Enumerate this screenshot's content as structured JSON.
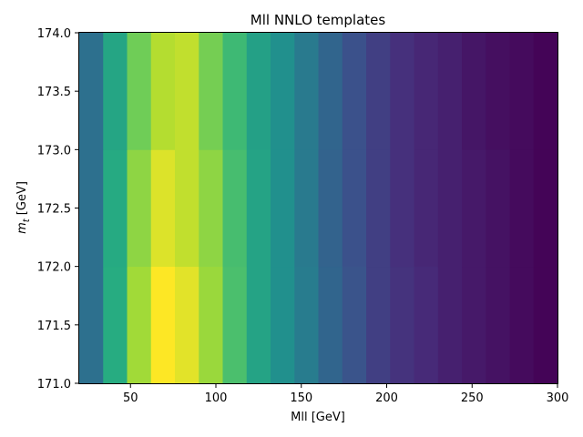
{
  "chart_data": {
    "type": "heatmap",
    "title": "Mll NNLO templates",
    "xlabel": "Mll [GeV]",
    "ylabel_var": "m",
    "ylabel_sub": "t",
    "ylabel_unit": " [GeV]",
    "colormap": "viridis",
    "xlim": [
      20,
      300
    ],
    "ylim": [
      171.0,
      174.0
    ],
    "x_ticks": [
      50,
      100,
      150,
      200,
      250,
      300
    ],
    "x_tick_labels": [
      "50",
      "100",
      "150",
      "200",
      "250",
      "300"
    ],
    "y_ticks": [
      171.0,
      171.5,
      172.0,
      172.5,
      173.0,
      173.5,
      174.0
    ],
    "y_tick_labels": [
      "171.0",
      "171.5",
      "172.0",
      "172.5",
      "173.0",
      "173.5",
      "174.0"
    ],
    "x_edges": [
      20,
      34,
      48,
      62,
      76,
      90,
      104,
      118,
      132,
      146,
      160,
      174,
      188,
      202,
      216,
      230,
      244,
      258,
      272,
      286,
      300
    ],
    "y_edges": [
      171.0,
      172.0,
      173.0,
      174.0
    ],
    "values": [
      [
        0.37,
        0.62,
        0.86,
        1.0,
        0.96,
        0.85,
        0.71,
        0.58,
        0.5,
        0.42,
        0.33,
        0.26,
        0.19,
        0.15,
        0.12,
        0.09,
        0.07,
        0.05,
        0.03,
        0.01
      ],
      [
        0.37,
        0.61,
        0.83,
        0.95,
        0.91,
        0.83,
        0.7,
        0.58,
        0.5,
        0.41,
        0.32,
        0.25,
        0.19,
        0.14,
        0.11,
        0.09,
        0.07,
        0.05,
        0.03,
        0.01
      ],
      [
        0.37,
        0.59,
        0.78,
        0.89,
        0.91,
        0.79,
        0.68,
        0.57,
        0.5,
        0.41,
        0.33,
        0.25,
        0.19,
        0.14,
        0.11,
        0.09,
        0.06,
        0.04,
        0.03,
        0.01
      ]
    ]
  }
}
